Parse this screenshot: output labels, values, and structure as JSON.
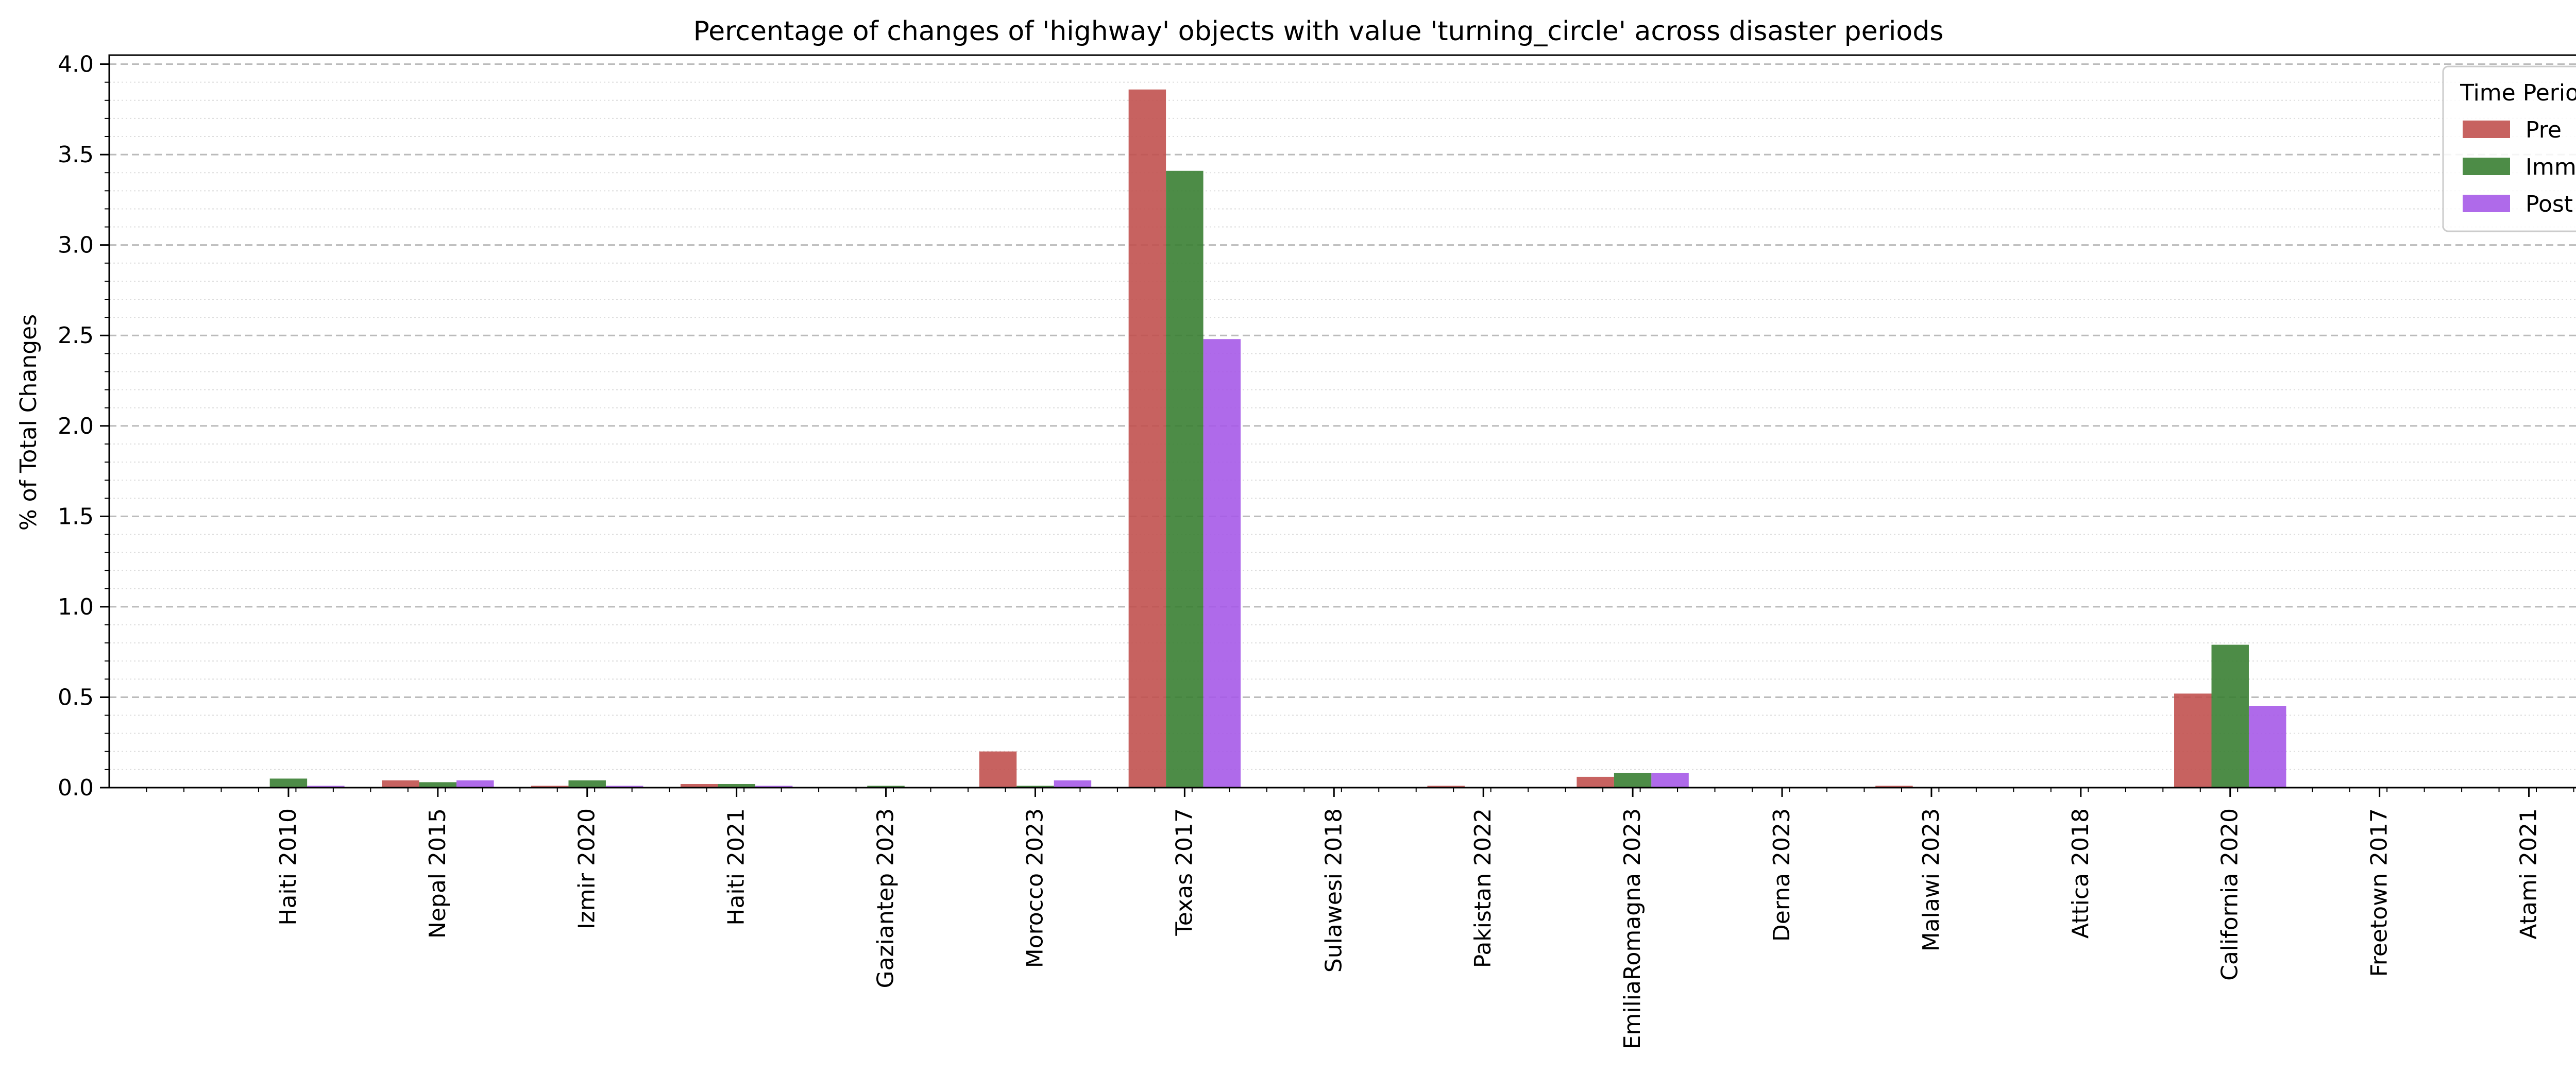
{
  "chart_data": {
    "type": "bar",
    "title": "Percentage of changes of 'highway' objects with value 'turning_circle' across disaster periods",
    "xlabel": "",
    "ylabel": "% of Total Changes",
    "ylim": [
      0,
      4.05
    ],
    "yticks": [
      "0.0",
      "0.5",
      "1.0",
      "1.5",
      "2.0",
      "2.5",
      "3.0",
      "3.5",
      "4.0"
    ],
    "grid": true,
    "legend": {
      "title": "Time Period",
      "placement": "top-right"
    },
    "categories": [
      "Haiti 2010",
      "Nepal 2015",
      "Izmir 2020",
      "Haiti 2021",
      "Gaziantep 2023",
      "Morocco 2023",
      "Texas 2017",
      "Sulawesi 2018",
      "Pakistan 2022",
      "EmiliaRomagna 2023",
      "Derna 2023",
      "Malawi 2023",
      "Attica 2018",
      "California 2020",
      "Freetown 2017",
      "Atami 2021"
    ],
    "series": [
      {
        "name": "Pre",
        "color": "#c1514f",
        "values": [
          0.0,
          0.04,
          0.01,
          0.02,
          0.0,
          0.2,
          3.86,
          0.0,
          0.01,
          0.06,
          0.0,
          0.01,
          0.0,
          0.52,
          0.0,
          0.0
        ]
      },
      {
        "name": "Imm",
        "color": "#3a8033",
        "values": [
          0.05,
          0.03,
          0.04,
          0.02,
          0.01,
          0.01,
          3.41,
          0.0,
          0.0,
          0.08,
          0.0,
          0.0,
          0.0,
          0.79,
          0.0,
          0.0
        ]
      },
      {
        "name": "Post",
        "color": "#a65ae8",
        "values": [
          0.01,
          0.04,
          0.01,
          0.01,
          0.0,
          0.04,
          2.48,
          0.0,
          0.0,
          0.08,
          0.0,
          0.0,
          0.0,
          0.45,
          0.0,
          0.0
        ]
      }
    ]
  }
}
